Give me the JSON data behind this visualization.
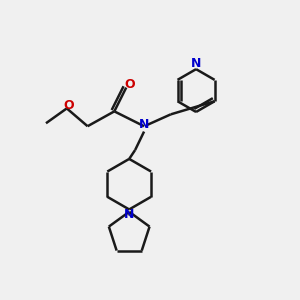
{
  "bg_color": "#f0f0f0",
  "bond_color": "#1a1a1a",
  "N_color": "#0000cc",
  "O_color": "#cc0000",
  "line_width": 1.8,
  "figsize": [
    3.0,
    3.0
  ],
  "dpi": 100,
  "xlim": [
    0,
    10
  ],
  "ylim": [
    0,
    10
  ]
}
